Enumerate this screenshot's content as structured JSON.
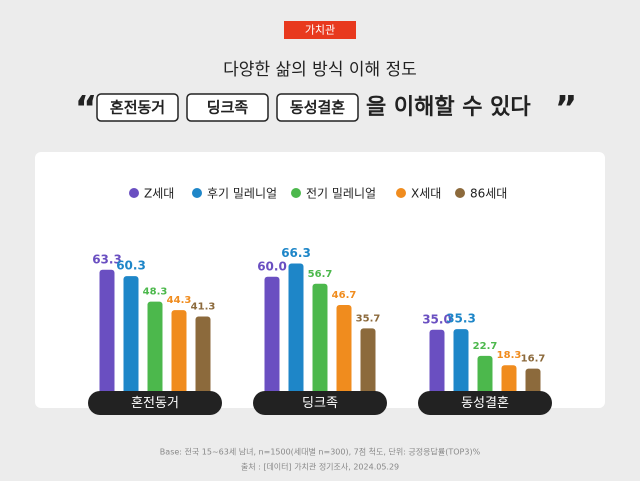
{
  "header": {
    "tag": "가치관",
    "title": "다양한 삶의 방식 이해 정도",
    "headline": {
      "open_quote": "“",
      "boxes": [
        "혼전동거",
        "딩크족",
        "동성결혼"
      ],
      "tail": "을 이해할 수 있다",
      "close_quote": "”"
    }
  },
  "chart_data": {
    "type": "bar",
    "categories": [
      "혼전동거",
      "딩크족",
      "동성결혼"
    ],
    "series": [
      {
        "name": "Z세대",
        "color": "#6a4fc1",
        "values": [
          63.3,
          60.0,
          35.0
        ],
        "value_labels": [
          "63.3",
          "60.0",
          "35.0"
        ]
      },
      {
        "name": "후기 밀레니얼",
        "color": "#1e86c8",
        "values": [
          60.3,
          66.3,
          35.3
        ],
        "value_labels": [
          "60.3",
          "66.3",
          "35.3"
        ]
      },
      {
        "name": "전기 밀레니얼",
        "color": "#4cb84c",
        "values": [
          48.3,
          56.7,
          22.7
        ],
        "value_labels": [
          "48.3",
          "56.7",
          "22.7"
        ]
      },
      {
        "name": "X세대",
        "color": "#f08c1e",
        "values": [
          44.3,
          46.7,
          18.3
        ],
        "value_labels": [
          "44.3",
          "46.7",
          "18.3"
        ]
      },
      {
        "name": "86세대",
        "color": "#8c6a3c",
        "values": [
          41.3,
          35.7,
          16.7
        ],
        "value_labels": [
          "41.3",
          "35.7",
          "16.7"
        ]
      }
    ]
  },
  "footer": {
    "base": "Base: 전국 15~63세 남녀, n=1500(세대별 n=300), 7점 척도, 단위: 긍정응답률(TOP3)%",
    "source": "출처 : [데이터] 가치관 정기조사, 2024.05.29"
  }
}
